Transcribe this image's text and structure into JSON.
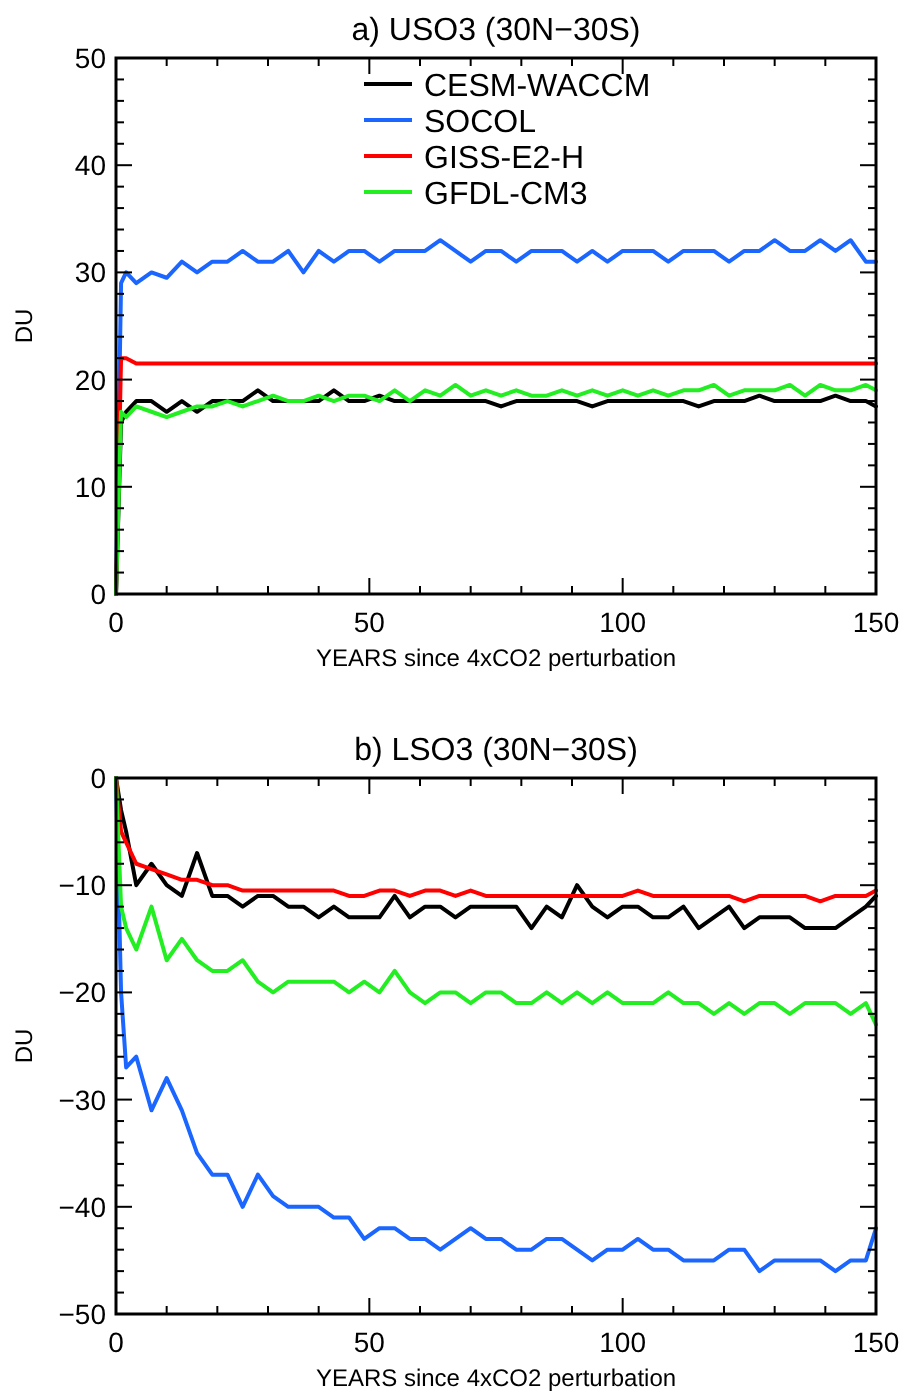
{
  "chart_data": [
    {
      "type": "line",
      "title": "a) USO3 (30N−30S)",
      "xlabel": "YEARS since 4xCO2 perturbation",
      "ylabel": "DU",
      "xlim": [
        0,
        150
      ],
      "ylim": [
        0,
        50
      ],
      "xticks": [
        0,
        {
          "value": 10,
          "label": null
        },
        {
          "value": 20,
          "label": null
        },
        {
          "value": 30,
          "label": null
        },
        {
          "value": 40,
          "label": null
        },
        50,
        {
          "value": 60,
          "label": null
        },
        {
          "value": 70,
          "label": null
        },
        {
          "value": 80,
          "label": null
        },
        {
          "value": 90,
          "label": null
        },
        100,
        {
          "value": 110,
          "label": null
        },
        {
          "value": 120,
          "label": null
        },
        {
          "value": 130,
          "label": null
        },
        {
          "value": 140,
          "label": null
        },
        150
      ],
      "yticks": [
        0,
        {
          "value": 2,
          "label": null
        },
        {
          "value": 4,
          "label": null
        },
        {
          "value": 6,
          "label": null
        },
        {
          "value": 8,
          "label": null
        },
        10,
        {
          "value": 12,
          "label": null
        },
        {
          "value": 14,
          "label": null
        },
        {
          "value": 16,
          "label": null
        },
        {
          "value": 18,
          "label": null
        },
        20,
        {
          "value": 22,
          "label": null
        },
        {
          "value": 24,
          "label": null
        },
        {
          "value": 26,
          "label": null
        },
        {
          "value": 28,
          "label": null
        },
        30,
        {
          "value": 32,
          "label": null
        },
        {
          "value": 34,
          "label": null
        },
        {
          "value": 36,
          "label": null
        },
        {
          "value": 38,
          "label": null
        },
        40,
        {
          "value": 42,
          "label": null
        },
        {
          "value": 44,
          "label": null
        },
        {
          "value": 46,
          "label": null
        },
        {
          "value": 48,
          "label": null
        },
        50
      ],
      "legend": "top",
      "x": [
        0,
        1,
        2,
        4,
        7,
        10,
        13,
        16,
        19,
        22,
        25,
        28,
        31,
        34,
        37,
        40,
        43,
        46,
        49,
        52,
        55,
        58,
        61,
        64,
        67,
        70,
        73,
        76,
        79,
        82,
        85,
        88,
        91,
        94,
        97,
        100,
        103,
        106,
        109,
        112,
        115,
        118,
        121,
        124,
        127,
        130,
        133,
        136,
        139,
        142,
        145,
        148,
        150
      ],
      "series": [
        {
          "name": "CESM-WACCM",
          "color": "#000000",
          "values": [
            0,
            16,
            17,
            18,
            18,
            17,
            18,
            17,
            18,
            18,
            18,
            19,
            18,
            18,
            18,
            18,
            19,
            18,
            18,
            18.5,
            18,
            18,
            18,
            18,
            18,
            18,
            18,
            17.5,
            18,
            18,
            18,
            18,
            18,
            17.5,
            18,
            18,
            18,
            18,
            18,
            18,
            17.5,
            18,
            18,
            18,
            18.5,
            18,
            18,
            18,
            18,
            18.5,
            18,
            18,
            17.5
          ]
        },
        {
          "name": "SOCOL",
          "color": "#1a66ff",
          "values": [
            0,
            29,
            30,
            29,
            30,
            29.5,
            31,
            30,
            31,
            31,
            32,
            31,
            31,
            32,
            30,
            32,
            31,
            32,
            32,
            31,
            32,
            32,
            32,
            33,
            32,
            31,
            32,
            32,
            31,
            32,
            32,
            32,
            31,
            32,
            31,
            32,
            32,
            32,
            31,
            32,
            32,
            32,
            31,
            32,
            32,
            33,
            32,
            32,
            33,
            32,
            33,
            31,
            31
          ]
        },
        {
          "name": "GISS-E2-H",
          "color": "#ff0000",
          "values": [
            0,
            22,
            22,
            21.5,
            21.5,
            21.5,
            21.5,
            21.5,
            21.5,
            21.5,
            21.5,
            21.5,
            21.5,
            21.5,
            21.5,
            21.5,
            21.5,
            21.5,
            21.5,
            21.5,
            21.5,
            21.5,
            21.5,
            21.5,
            21.5,
            21.5,
            21.5,
            21.5,
            21.5,
            21.5,
            21.5,
            21.5,
            21.5,
            21.5,
            21.5,
            21.5,
            21.5,
            21.5,
            21.5,
            21.5,
            21.5,
            21.5,
            21.5,
            21.5,
            21.5,
            21.5,
            21.5,
            21.5,
            21.5,
            21.5,
            21.5,
            21.5,
            21.5
          ]
        },
        {
          "name": "GFDL-CM3",
          "color": "#22ee22",
          "values": [
            0,
            17,
            16.5,
            17.5,
            17,
            16.5,
            17,
            17.5,
            17.5,
            18,
            17.5,
            18,
            18.5,
            18,
            18,
            18.5,
            18,
            18.5,
            18.5,
            18,
            19,
            18,
            19,
            18.5,
            19.5,
            18.5,
            19,
            18.5,
            19,
            18.5,
            18.5,
            19,
            18.5,
            19,
            18.5,
            19,
            18.5,
            19,
            18.5,
            19,
            19,
            19.5,
            18.5,
            19,
            19,
            19,
            19.5,
            18.5,
            19.5,
            19,
            19,
            19.5,
            19
          ]
        }
      ]
    },
    {
      "type": "line",
      "title": "b) LSO3 (30N−30S)",
      "xlabel": "YEARS since 4xCO2 perturbation",
      "ylabel": "DU",
      "xlim": [
        0,
        150
      ],
      "ylim": [
        -50,
        0
      ],
      "xticks": [
        0,
        {
          "value": 10,
          "label": null
        },
        {
          "value": 20,
          "label": null
        },
        {
          "value": 30,
          "label": null
        },
        {
          "value": 40,
          "label": null
        },
        50,
        {
          "value": 60,
          "label": null
        },
        {
          "value": 70,
          "label": null
        },
        {
          "value": 80,
          "label": null
        },
        {
          "value": 90,
          "label": null
        },
        100,
        {
          "value": 110,
          "label": null
        },
        {
          "value": 120,
          "label": null
        },
        {
          "value": 130,
          "label": null
        },
        {
          "value": 140,
          "label": null
        },
        150
      ],
      "yticks": [
        {
          "value": -50,
          "label": "−50"
        },
        {
          "value": -48,
          "label": null
        },
        {
          "value": -46,
          "label": null
        },
        {
          "value": -44,
          "label": null
        },
        {
          "value": -42,
          "label": null
        },
        {
          "value": -40,
          "label": "−40"
        },
        {
          "value": -38,
          "label": null
        },
        {
          "value": -36,
          "label": null
        },
        {
          "value": -34,
          "label": null
        },
        {
          "value": -32,
          "label": null
        },
        {
          "value": -30,
          "label": "−30"
        },
        {
          "value": -28,
          "label": null
        },
        {
          "value": -26,
          "label": null
        },
        {
          "value": -24,
          "label": null
        },
        {
          "value": -22,
          "label": null
        },
        {
          "value": -20,
          "label": "−20"
        },
        {
          "value": -18,
          "label": null
        },
        {
          "value": -16,
          "label": null
        },
        {
          "value": -14,
          "label": null
        },
        {
          "value": -12,
          "label": null
        },
        {
          "value": -10,
          "label": "−10"
        },
        {
          "value": -8,
          "label": null
        },
        {
          "value": -6,
          "label": null
        },
        {
          "value": -4,
          "label": null
        },
        {
          "value": -2,
          "label": null
        },
        0
      ],
      "x": [
        0,
        1,
        2,
        4,
        7,
        10,
        13,
        16,
        19,
        22,
        25,
        28,
        31,
        34,
        37,
        40,
        43,
        46,
        49,
        52,
        55,
        58,
        61,
        64,
        67,
        70,
        73,
        76,
        79,
        82,
        85,
        88,
        91,
        94,
        97,
        100,
        103,
        106,
        109,
        112,
        115,
        118,
        121,
        124,
        127,
        130,
        133,
        136,
        139,
        142,
        145,
        148,
        150
      ],
      "series": [
        {
          "color": "#000000",
          "values": [
            0,
            -3,
            -5,
            -10,
            -8,
            -10,
            -11,
            -7,
            -11,
            -11,
            -12,
            -11,
            -11,
            -12,
            -12,
            -13,
            -12,
            -13,
            -13,
            -13,
            -11,
            -13,
            -12,
            -12,
            -13,
            -12,
            -12,
            -12,
            -12,
            -14,
            -12,
            -13,
            -10,
            -12,
            -13,
            -12,
            -12,
            -13,
            -13,
            -12,
            -14,
            -13,
            -12,
            -14,
            -13,
            -13,
            -13,
            -14,
            -14,
            -14,
            -13,
            -12,
            -11
          ]
        },
        {
          "color": "#1a66ff",
          "values": [
            0,
            -20,
            -27,
            -26,
            -31,
            -28,
            -31,
            -35,
            -37,
            -37,
            -40,
            -37,
            -39,
            -40,
            -40,
            -40,
            -41,
            -41,
            -43,
            -42,
            -42,
            -43,
            -43,
            -44,
            -43,
            -42,
            -43,
            -43,
            -44,
            -44,
            -43,
            -43,
            -44,
            -45,
            -44,
            -44,
            -43,
            -44,
            -44,
            -45,
            -45,
            -45,
            -44,
            -44,
            -46,
            -45,
            -45,
            -45,
            -45,
            -46,
            -45,
            -45,
            -42
          ]
        },
        {
          "color": "#ff0000",
          "values": [
            0,
            -5,
            -6,
            -8,
            -8.5,
            -9,
            -9.5,
            -9.5,
            -10,
            -10,
            -10.5,
            -10.5,
            -10.5,
            -10.5,
            -10.5,
            -10.5,
            -10.5,
            -11,
            -11,
            -10.5,
            -10.5,
            -11,
            -10.5,
            -10.5,
            -11,
            -10.5,
            -11,
            -11,
            -11,
            -11,
            -11,
            -11,
            -11,
            -11,
            -11,
            -11,
            -10.5,
            -11,
            -11,
            -11,
            -11,
            -11,
            -11,
            -11.5,
            -11,
            -11,
            -11,
            -11,
            -11.5,
            -11,
            -11,
            -11,
            -10.5
          ]
        },
        {
          "color": "#22ee22",
          "values": [
            0,
            -12,
            -14,
            -16,
            -12,
            -17,
            -15,
            -17,
            -18,
            -18,
            -17,
            -19,
            -20,
            -19,
            -19,
            -19,
            -19,
            -20,
            -19,
            -20,
            -18,
            -20,
            -21,
            -20,
            -20,
            -21,
            -20,
            -20,
            -21,
            -21,
            -20,
            -21,
            -20,
            -21,
            -20,
            -21,
            -21,
            -21,
            -20,
            -21,
            -21,
            -22,
            -21,
            -22,
            -21,
            -21,
            -22,
            -21,
            -21,
            -21,
            -22,
            -21,
            -23
          ]
        }
      ]
    }
  ]
}
